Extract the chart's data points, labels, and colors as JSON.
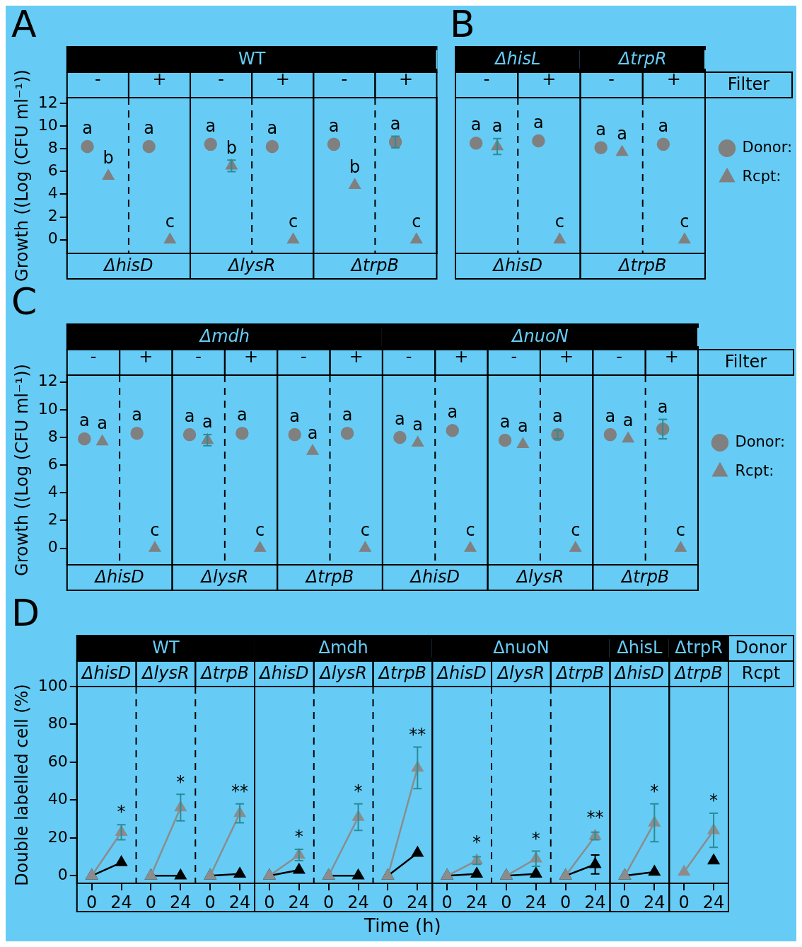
{
  "chart_data": [
    {
      "type": "scatter",
      "ylabel": "Growth ((Log (CFU ml⁻¹))",
      "categories": [
        "-",
        "+",
        "-",
        "+",
        "-",
        "+"
      ],
      "ylim": [
        -1.2,
        12.5
      ],
      "yticks": [
        0,
        2,
        4,
        6,
        8,
        10,
        12
      ],
      "annotations": [
        "A",
        "WT",
        "ΔhisD",
        "ΔlysR",
        "ΔtrpB"
      ],
      "series": [
        {
          "color": "#808080",
          "marker": "circle",
          "values": [
            8.2,
            8.2,
            8.4,
            8.2,
            8.4,
            8.6
          ],
          "errors": [
            null,
            null,
            null,
            null,
            null,
            0.5
          ],
          "value_labels": [
            "a",
            "a",
            "a",
            "a",
            "a",
            "a"
          ]
        },
        {
          "color": "#808080",
          "marker": "triangle",
          "values": [
            5.6,
            0,
            6.5,
            0,
            4.8,
            0
          ],
          "errors": [
            null,
            null,
            0.5,
            null,
            null,
            null
          ],
          "value_labels": [
            "b",
            "c",
            "b",
            "c",
            "b",
            "c"
          ]
        }
      ]
    },
    {
      "type": "scatter",
      "categories": [
        "-",
        "+",
        "-",
        "+"
      ],
      "ylim": [
        -1.2,
        12.5
      ],
      "tick_labels": "x",
      "legend": "right",
      "annotations": [
        "B",
        "ΔhisL",
        "ΔtrpR",
        "Filter",
        "ΔhisD",
        "ΔtrpB"
      ],
      "series": [
        {
          "name": "Donor:",
          "color": "#808080",
          "marker": "circle",
          "values": [
            8.5,
            8.7,
            8.1,
            8.4
          ],
          "value_labels": [
            "a",
            "a",
            "a",
            "a"
          ]
        },
        {
          "name": "Rcpt:",
          "color": "#808080",
          "marker": "triangle",
          "values": [
            8.2,
            0,
            7.7,
            0
          ],
          "errors": [
            0.7,
            null,
            null,
            null
          ],
          "value_labels": [
            "a",
            "c",
            "a",
            "c"
          ]
        }
      ]
    },
    {
      "type": "scatter",
      "ylabel": "Growth ((Log (CFU ml⁻¹))",
      "categories": [
        "-",
        "+",
        "-",
        "+",
        "-",
        "+",
        "-",
        "+",
        "-",
        "+",
        "-",
        "+"
      ],
      "ylim": [
        -1.2,
        12.5
      ],
      "yticks": [
        0,
        2,
        4,
        6,
        8,
        10,
        12
      ],
      "legend": "right",
      "annotations": [
        "C",
        "Δmdh",
        "ΔnuoN",
        "Filter",
        "ΔhisD",
        "ΔlysR",
        "ΔtrpB",
        "ΔhisD",
        "ΔlysR",
        "ΔtrpB"
      ],
      "series": [
        {
          "name": "Donor:",
          "color": "#808080",
          "marker": "circle",
          "values": [
            7.9,
            8.3,
            8.2,
            8.3,
            8.2,
            8.3,
            8.0,
            8.5,
            7.8,
            8.2,
            8.2,
            8.6
          ],
          "errors": [
            null,
            null,
            null,
            null,
            null,
            null,
            null,
            null,
            null,
            0.3,
            null,
            0.7
          ],
          "value_labels": [
            "a",
            "a",
            "a",
            "a",
            "a",
            "a",
            "a",
            "a",
            "a",
            "a",
            "a",
            "a"
          ]
        },
        {
          "name": "Rcpt:",
          "color": "#808080",
          "marker": "triangle",
          "values": [
            7.7,
            0,
            7.8,
            0,
            7.0,
            0,
            7.6,
            0,
            7.5,
            0,
            7.9,
            0
          ],
          "errors": [
            null,
            null,
            0.4,
            null,
            null,
            null,
            null,
            null,
            null,
            null,
            null,
            null
          ],
          "value_labels": [
            "a",
            "c",
            "a",
            "c",
            "a",
            "c",
            "a",
            "c",
            "a",
            "c",
            "a",
            "c"
          ]
        }
      ]
    },
    {
      "type": "line",
      "ylabel": "Double labelled cell (%)",
      "xlabel": "Time (h)",
      "categories": [
        "0",
        "24",
        "0",
        "24",
        "0",
        "24",
        "0",
        "24",
        "0",
        "24",
        "0",
        "24",
        "0",
        "24",
        "0",
        "24",
        "0",
        "24",
        "0",
        "24",
        "0",
        "24"
      ],
      "ylim": [
        -4,
        100
      ],
      "yticks": [
        0,
        20,
        40,
        60,
        80,
        100
      ],
      "annotations": [
        "D",
        "WT",
        "Δmdh",
        "ΔnuoN",
        "ΔhisL",
        "ΔtrpR",
        "Donor",
        "ΔhisD",
        "ΔlysR",
        "ΔtrpB",
        "ΔhisD",
        "ΔlysR",
        "ΔtrpB",
        "ΔhisD",
        "ΔlysR",
        "ΔtrpB",
        "ΔhisD",
        "ΔtrpB",
        "Rcpt"
      ],
      "series": [
        {
          "color": "#8c8c8c",
          "marker": "triangle",
          "values": [
            0,
            23,
            0,
            36,
            0,
            33,
            0,
            11,
            0,
            31,
            0,
            57,
            0,
            8,
            0,
            9,
            0,
            21,
            0,
            28,
            2,
            24
          ],
          "errors": [
            null,
            4,
            null,
            7,
            null,
            5,
            null,
            3,
            null,
            7,
            null,
            11,
            null,
            2,
            null,
            4,
            null,
            2,
            null,
            10,
            null,
            9
          ],
          "value_labels": [
            null,
            "*",
            null,
            "*",
            null,
            "**",
            null,
            "*",
            null,
            "*",
            null,
            "**",
            null,
            "*",
            null,
            "*",
            null,
            "**",
            null,
            "*",
            null,
            "*"
          ]
        },
        {
          "color": "#000000",
          "marker": "triangle",
          "values": [
            0,
            7,
            0,
            0,
            0,
            1,
            0,
            3,
            0,
            0,
            0,
            12,
            0,
            1,
            0,
            1,
            0,
            6,
            0,
            2,
            null,
            8
          ],
          "errors": [
            null,
            null,
            null,
            null,
            null,
            null,
            null,
            null,
            null,
            null,
            null,
            null,
            null,
            null,
            null,
            null,
            null,
            5,
            null,
            null,
            null,
            null
          ]
        }
      ]
    }
  ]
}
